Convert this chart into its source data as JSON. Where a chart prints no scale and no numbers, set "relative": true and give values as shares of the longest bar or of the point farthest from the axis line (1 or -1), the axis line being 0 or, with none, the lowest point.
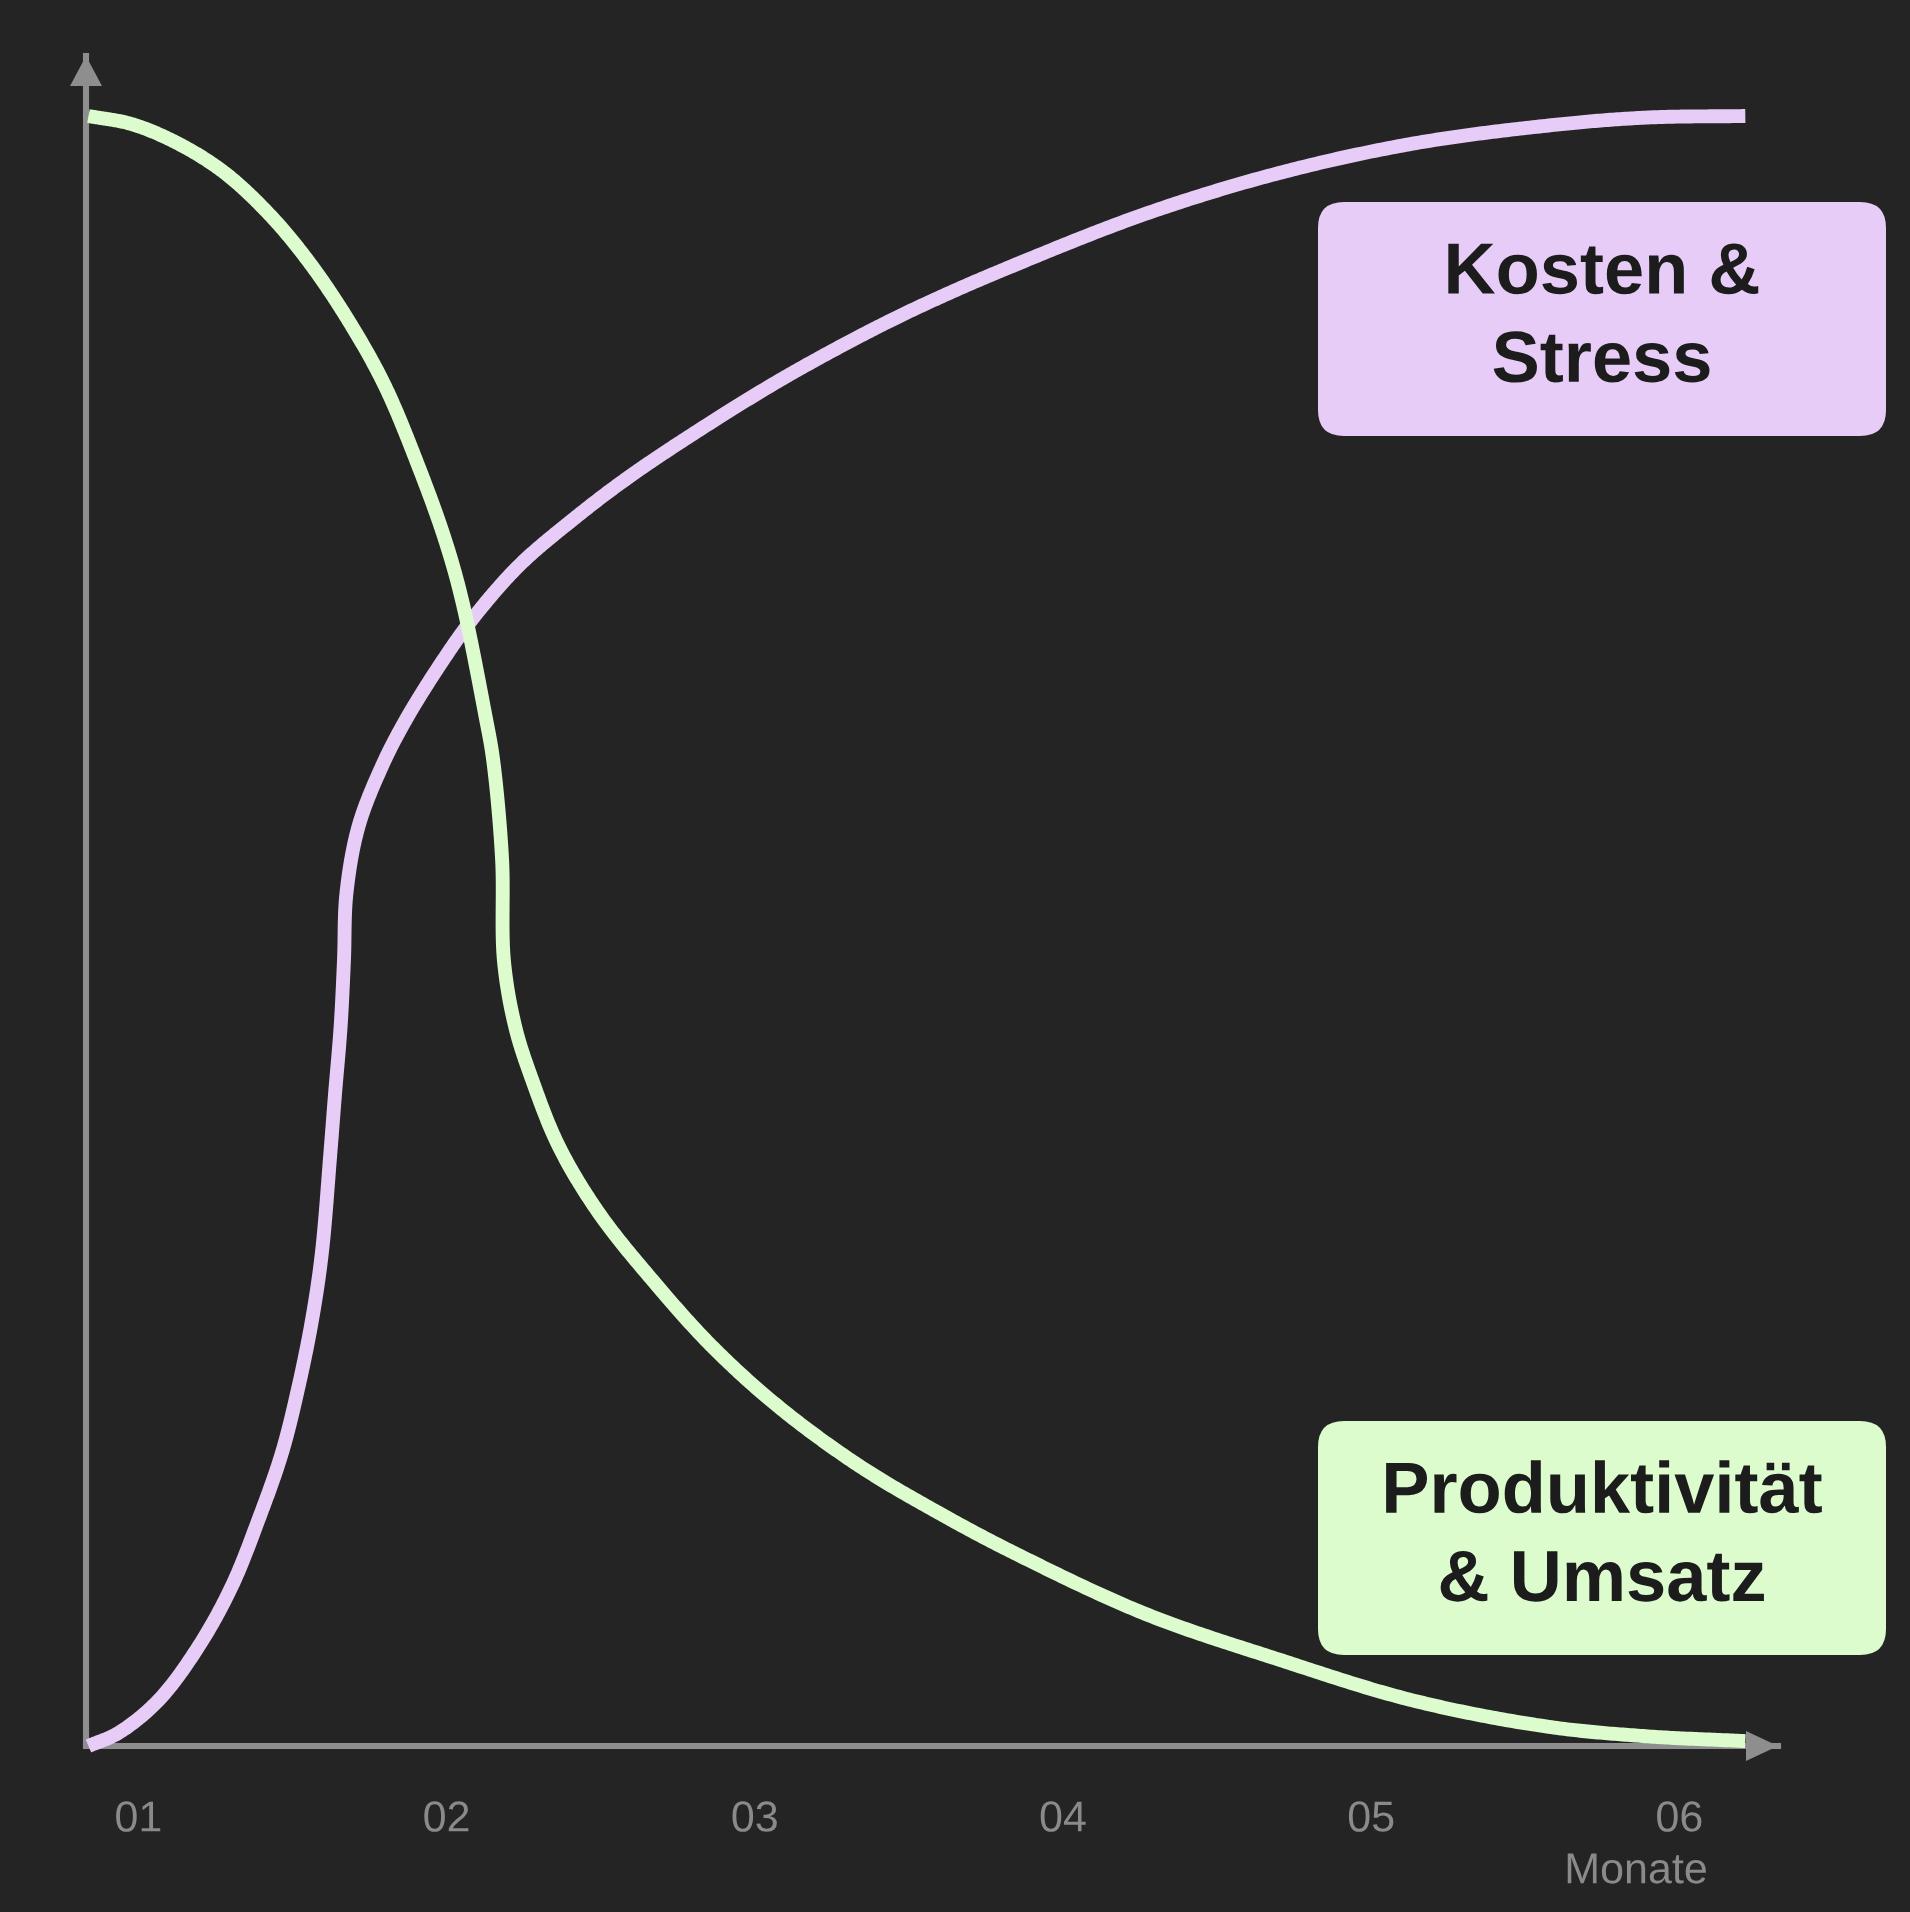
{
  "chart_data": {
    "type": "line",
    "relative": true,
    "xlabel": "Monate",
    "tick_labels": "x",
    "xlim": [
      0.83,
      6.32
    ],
    "xticks": [
      {
        "value": 1,
        "label": "01"
      },
      {
        "value": 2,
        "label": "02"
      },
      {
        "value": 3,
        "label": "03"
      },
      {
        "value": 4,
        "label": "04"
      },
      {
        "value": 5,
        "label": "05"
      },
      {
        "value": 6,
        "label": "06"
      }
    ],
    "series": [
      {
        "name": "Kosten & Stress",
        "color": "#e8ccf8",
        "x": [
          0.838,
          0.935,
          1.065,
          1.195,
          1.303,
          1.39,
          1.466,
          1.519,
          1.563,
          1.595,
          1.623,
          1.638,
          1.656,
          1.667,
          1.675,
          1.714,
          1.79,
          1.866,
          1.974,
          2.082,
          2.234,
          2.407,
          2.58,
          2.792,
          3.091,
          3.393,
          3.591,
          3.836,
          4.268,
          4.701,
          5.134,
          5.567,
          5.89,
          6.214
        ],
        "values": [
          0.0,
          0.008,
          0.028,
          0.061,
          0.098,
          0.139,
          0.18,
          0.22,
          0.261,
          0.302,
          0.364,
          0.4,
          0.441,
          0.482,
          0.523,
          0.564,
          0.601,
          0.629,
          0.662,
          0.691,
          0.724,
          0.752,
          0.777,
          0.804,
          0.839,
          0.87,
          0.888,
          0.908,
          0.94,
          0.965,
          0.983,
          0.994,
          0.999,
          1.0
        ]
      },
      {
        "name": "Produktivität & Umsatz",
        "color": "#dcfcce",
        "x": [
          0.838,
          0.979,
          1.13,
          1.281,
          1.433,
          1.563,
          1.693,
          1.801,
          1.909,
          1.995,
          2.05,
          2.125,
          2.151,
          2.18,
          2.186,
          2.223,
          2.277,
          2.364,
          2.494,
          2.667,
          2.862,
          3.078,
          3.338,
          3.597,
          3.857,
          4.268,
          4.701,
          5.134,
          5.567,
          5.89,
          6.214
        ],
        "values": [
          1.0,
          0.995,
          0.983,
          0.965,
          0.938,
          0.908,
          0.871,
          0.834,
          0.785,
          0.74,
          0.703,
          0.633,
          0.605,
          0.544,
          0.482,
          0.441,
          0.409,
          0.368,
          0.327,
          0.286,
          0.245,
          0.208,
          0.172,
          0.143,
          0.117,
          0.081,
          0.053,
          0.028,
          0.012,
          0.006,
          0.003
        ]
      }
    ]
  }
}
